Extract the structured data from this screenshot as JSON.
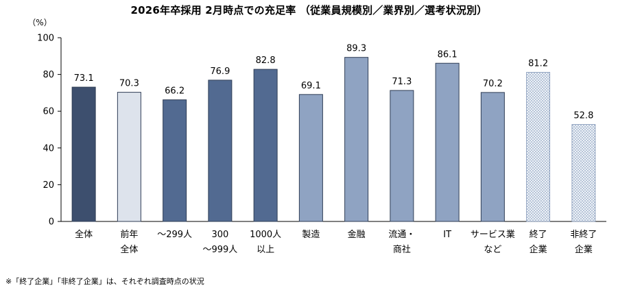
{
  "chart_data": {
    "type": "bar",
    "title": "2026年卒採用 2月時点での充足率 （従業員規模別／業界別／選考状況別）",
    "ylabel": "（%）",
    "ylim": [
      0,
      100
    ],
    "yticks": [
      0,
      20,
      40,
      60,
      80,
      100
    ],
    "grid": false,
    "categories": [
      [
        "全体"
      ],
      [
        "前年",
        "全体"
      ],
      [
        "～299人"
      ],
      [
        "300",
        "～999人"
      ],
      [
        "1000人",
        "以上"
      ],
      [
        "製造"
      ],
      [
        "金融"
      ],
      [
        "流通・",
        "商社"
      ],
      [
        "IT"
      ],
      [
        "サービス業",
        "など"
      ],
      [
        "終了",
        "企業"
      ],
      [
        "非終了",
        "企業"
      ]
    ],
    "values": [
      73.1,
      70.3,
      66.2,
      76.9,
      82.8,
      69.1,
      89.3,
      71.3,
      86.1,
      70.2,
      81.2,
      52.8
    ],
    "colors": [
      "#3d4f6e",
      "#dde3ec",
      "#526a91",
      "#526a91",
      "#526a91",
      "#8fa3c2",
      "#8fa3c2",
      "#8fa3c2",
      "#8fa3c2",
      "#8fa3c2",
      "dots",
      "dots"
    ]
  },
  "footnote": "※「終了企業」「非終了企業」は、それぞれ調査時点の状況"
}
